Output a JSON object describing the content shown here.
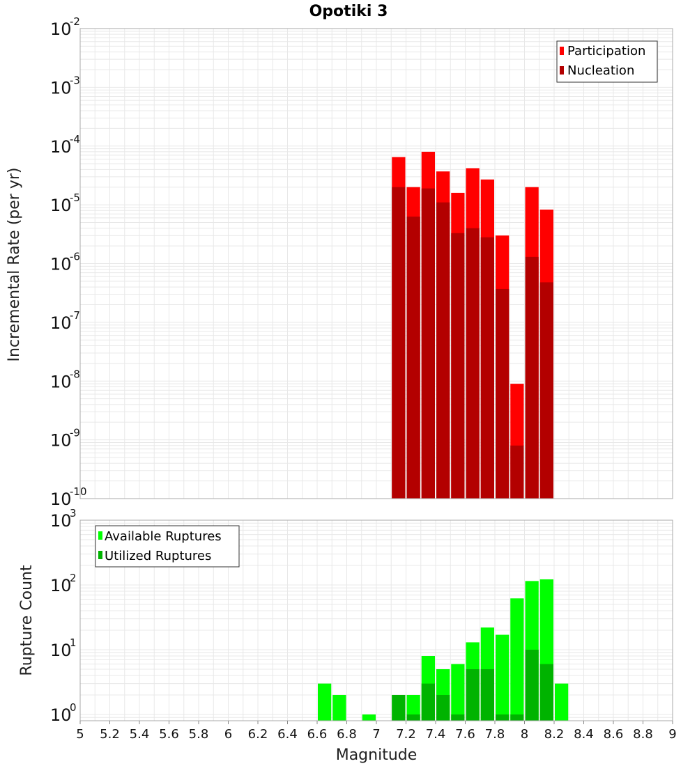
{
  "colors": {
    "participation": "#ff0000",
    "nucleation": "#b30000",
    "available": "#00ff00",
    "utilized": "#00b300",
    "grid": "#e8e8e8",
    "frame": "#aaaaaa"
  },
  "chart_data": [
    {
      "type": "bar",
      "title": "Opotiki 3",
      "xlabel": "",
      "ylabel": "Incremental Rate (per yr)",
      "yscale": "log",
      "ylim": [
        1e-10,
        0.01
      ],
      "xlim": [
        5,
        9
      ],
      "ytick_base": "10",
      "ytick_exponents": [
        "-10",
        "-9",
        "-8",
        "-7",
        "-6",
        "-5",
        "-4",
        "-3",
        "-2"
      ],
      "legend_position": "top-right",
      "x": [
        7.15,
        7.25,
        7.35,
        7.45,
        7.55,
        7.65,
        7.75,
        7.85,
        7.95,
        8.05,
        8.15
      ],
      "series": [
        {
          "name": "Participation",
          "values": [
            6.5e-05,
            2e-05,
            8e-05,
            3.7e-05,
            1.6e-05,
            4.2e-05,
            2.7e-05,
            3e-06,
            9e-09,
            2e-05,
            8.3e-06
          ]
        },
        {
          "name": "Nucleation",
          "values": [
            2e-05,
            6.3e-06,
            1.9e-05,
            1.1e-05,
            3.3e-06,
            4e-06,
            2.8e-06,
            3.7e-07,
            8e-10,
            1.3e-06,
            4.8e-07
          ]
        }
      ]
    },
    {
      "type": "bar",
      "title": "",
      "xlabel": "Magnitude",
      "ylabel": "Rupture Count",
      "yscale": "log",
      "ylim": [
        0.8,
        1000
      ],
      "xlim": [
        5,
        9
      ],
      "ytick_base": "10",
      "ytick_exponents": [
        "0",
        "1",
        "2",
        "3"
      ],
      "xtick_labels": [
        "5",
        "5.2",
        "5.4",
        "5.6",
        "5.8",
        "6",
        "6.2",
        "6.4",
        "6.6",
        "6.8",
        "7",
        "7.2",
        "7.4",
        "7.6",
        "7.8",
        "8",
        "8.2",
        "8.4",
        "8.6",
        "8.8",
        "9"
      ],
      "legend_position": "top-left",
      "x": [
        6.65,
        6.75,
        6.95,
        7.15,
        7.25,
        7.35,
        7.45,
        7.55,
        7.65,
        7.75,
        7.85,
        7.95,
        8.05,
        8.15,
        8.25
      ],
      "series": [
        {
          "name": "Available Ruptures",
          "values": [
            3,
            2,
            1,
            2,
            2,
            8,
            5,
            6,
            13,
            22,
            17,
            62,
            115,
            122,
            3
          ]
        },
        {
          "name": "Utilized Ruptures",
          "values": [
            0,
            0,
            0,
            2,
            1,
            3,
            2,
            1,
            5,
            5,
            1,
            1,
            10,
            6,
            0
          ]
        }
      ]
    }
  ]
}
